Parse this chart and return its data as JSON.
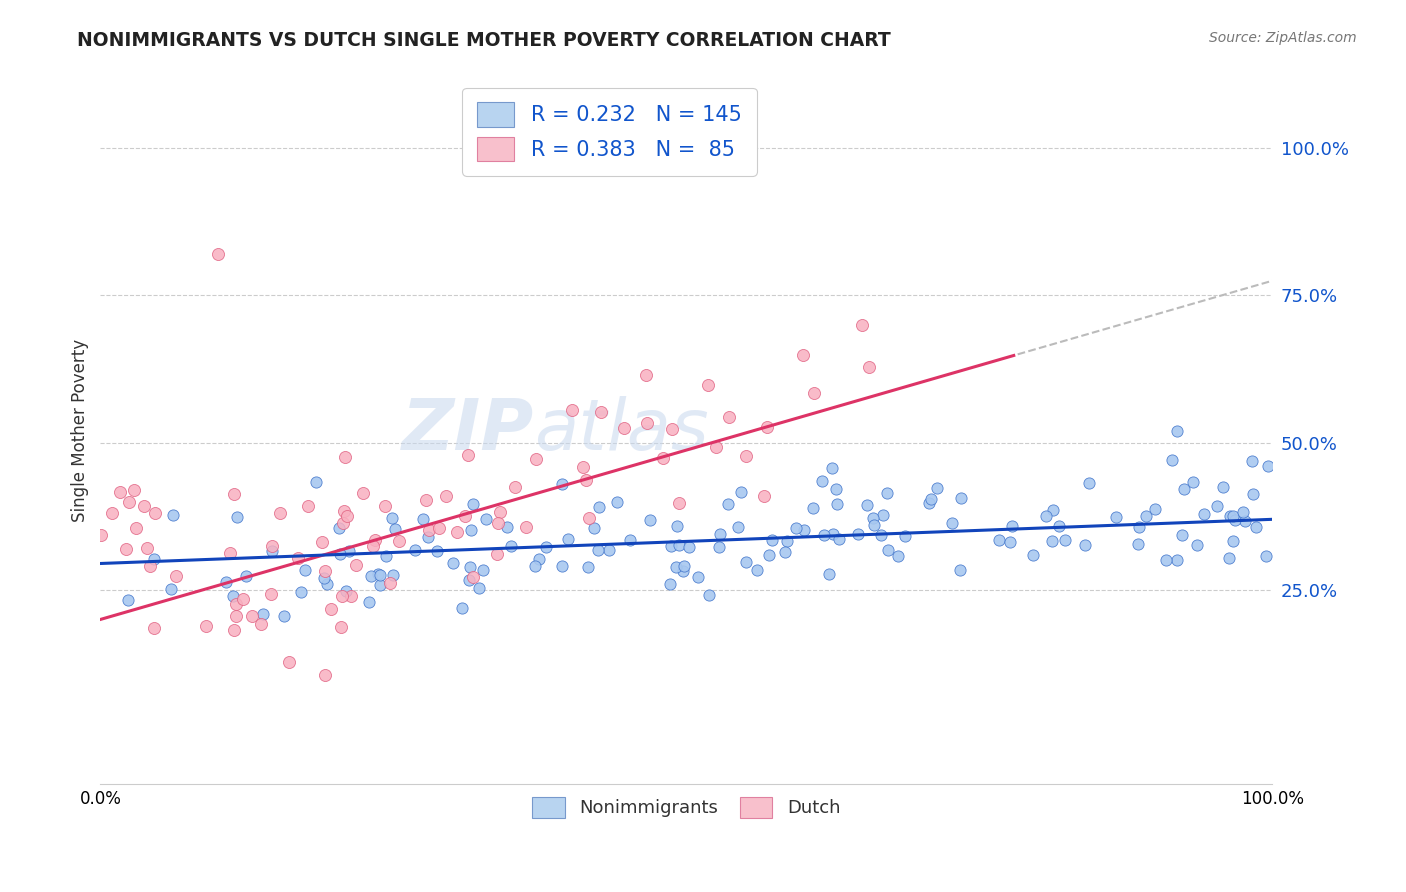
{
  "title": "NONIMMIGRANTS VS DUTCH SINGLE MOTHER POVERTY CORRELATION CHART",
  "source": "Source: ZipAtlas.com",
  "ylabel": "Single Mother Poverty",
  "ytick_vals": [
    0.25,
    0.5,
    0.75,
    1.0
  ],
  "blue_scatter_face": "#a8c8f0",
  "blue_scatter_edge": "#4477cc",
  "pink_scatter_face": "#f8b0c0",
  "pink_scatter_edge": "#e06080",
  "blue_line_color": "#1144bb",
  "pink_line_color": "#dd3366",
  "dash_line_color": "#bbbbbb",
  "watermark_color": "#c8d8ee",
  "xlim": [
    0.0,
    1.0
  ],
  "ylim": [
    -0.08,
    1.12
  ],
  "blue_intercept": 0.295,
  "blue_slope": 0.075,
  "pink_intercept": 0.2,
  "pink_slope": 0.575,
  "pink_line_end_x": 0.78,
  "N_blue": 145,
  "N_pink": 85
}
